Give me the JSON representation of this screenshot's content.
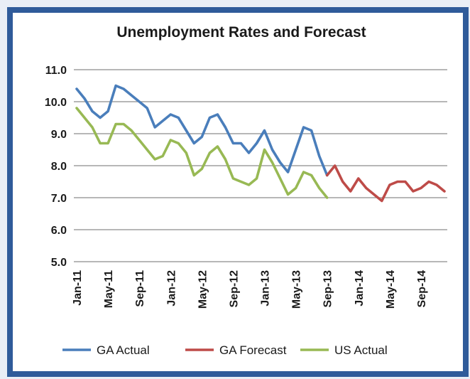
{
  "chart_data": {
    "type": "line",
    "title": "Unemployment Rates and Forecast",
    "xlabel": "",
    "ylabel": "",
    "ylim": [
      5.0,
      11.0
    ],
    "yticks": [
      "5.0",
      "6.0",
      "7.0",
      "8.0",
      "9.0",
      "10.0",
      "11.0"
    ],
    "x_tick_labels": [
      "Jan-11",
      "May-11",
      "Sep-11",
      "Jan-12",
      "May-12",
      "Sep-12",
      "Jan-13",
      "May-13",
      "Sep-13",
      "Jan-14",
      "May-14",
      "Sep-14"
    ],
    "x_months": [
      "Jan-11",
      "Feb-11",
      "Mar-11",
      "Apr-11",
      "May-11",
      "Jun-11",
      "Jul-11",
      "Aug-11",
      "Sep-11",
      "Oct-11",
      "Nov-11",
      "Dec-11",
      "Jan-12",
      "Feb-12",
      "Mar-12",
      "Apr-12",
      "May-12",
      "Jun-12",
      "Jul-12",
      "Aug-12",
      "Sep-12",
      "Oct-12",
      "Nov-12",
      "Dec-12",
      "Jan-13",
      "Feb-13",
      "Mar-13",
      "Apr-13",
      "May-13",
      "Jun-13",
      "Jul-13",
      "Aug-13",
      "Sep-13",
      "Oct-13",
      "Nov-13",
      "Dec-13",
      "Jan-14",
      "Feb-14",
      "Mar-14",
      "Apr-14",
      "May-14",
      "Jun-14",
      "Jul-14",
      "Aug-14",
      "Sep-14",
      "Oct-14",
      "Nov-14",
      "Dec-14"
    ],
    "gridlines": true,
    "legend_position": "bottom",
    "series": [
      {
        "name": "GA Actual",
        "color": "#4a7ebb",
        "start_month": "Jan-11",
        "values": [
          10.4,
          10.1,
          9.7,
          9.5,
          9.7,
          10.5,
          10.4,
          10.2,
          10.0,
          9.8,
          9.2,
          9.4,
          9.6,
          9.5,
          9.1,
          8.7,
          8.9,
          9.5,
          9.6,
          9.2,
          8.7,
          8.7,
          8.4,
          8.7,
          9.1,
          8.5,
          8.1,
          7.8,
          8.5,
          9.2,
          9.1,
          8.3,
          7.7
        ]
      },
      {
        "name": "GA Forecast",
        "color": "#be4b48",
        "start_month": "Sep-13",
        "values": [
          7.7,
          8.0,
          7.5,
          7.2,
          7.6,
          7.3,
          7.1,
          6.9,
          7.4,
          7.5,
          7.5,
          7.2,
          7.3,
          7.5,
          7.4,
          7.2
        ]
      },
      {
        "name": "US Actual",
        "color": "#98b954",
        "start_month": "Jan-11",
        "values": [
          9.8,
          9.5,
          9.2,
          8.7,
          8.7,
          9.3,
          9.3,
          9.1,
          8.8,
          8.5,
          8.2,
          8.3,
          8.8,
          8.7,
          8.4,
          7.7,
          7.9,
          8.4,
          8.6,
          8.2,
          7.6,
          7.5,
          7.4,
          7.6,
          8.5,
          8.1,
          7.6,
          7.1,
          7.3,
          7.8,
          7.7,
          7.3,
          7.0
        ]
      }
    ]
  }
}
